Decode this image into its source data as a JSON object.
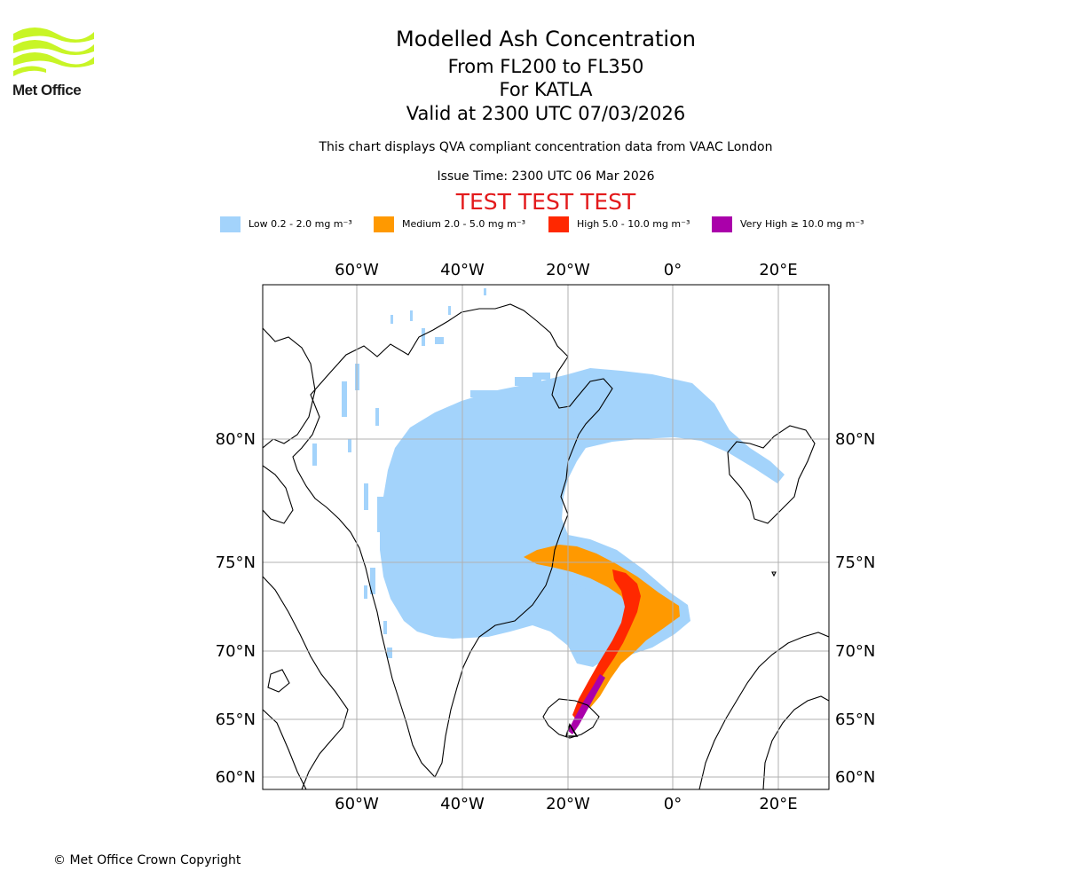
{
  "brand": {
    "name": "Met Office",
    "logo_color": "#c8f526",
    "text_color": "#1c1c1c"
  },
  "header": {
    "title": "Modelled Ash Concentration",
    "levels": "From FL200 to FL350",
    "volcano": "For KATLA",
    "valid": "Valid at 2300 UTC 07/03/2026",
    "description": "This chart displays QVA compliant concentration data from VAAC London",
    "issue_time": "Issue Time: 2300 UTC 06 Mar 2026",
    "test_banner": "TEST TEST TEST",
    "test_color": "#e31a1c"
  },
  "legend": [
    {
      "label": "Low 0.2 - 2.0 mg m⁻³",
      "color": "#a3d3fb"
    },
    {
      "label": "Medium 2.0 - 5.0 mg m⁻³",
      "color": "#ff9900"
    },
    {
      "label": "High 5.0 - 10.0 mg m⁻³",
      "color": "#ff2800"
    },
    {
      "label": "Very High  ≥  10.0 mg m⁻³",
      "color": "#aa00aa"
    }
  ],
  "map": {
    "lon_labels": [
      "60°W",
      "40°W",
      "20°W",
      "0°",
      "20°E"
    ],
    "lat_labels": [
      "80°N",
      "75°N",
      "70°N",
      "65°N",
      "60°N"
    ]
  },
  "footer": {
    "copyright": "© Met Office Crown Copyright"
  }
}
